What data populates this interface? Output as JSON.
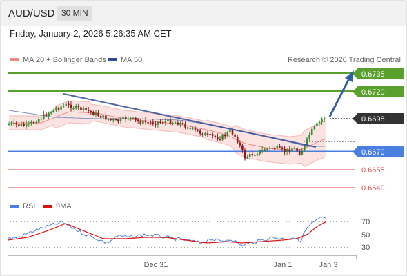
{
  "header": {
    "symbol": "AUD/USD",
    "timeframe": "30 MIN",
    "datetime": "Friday, January 2, 2026 5:26:35 AM CET"
  },
  "legend": {
    "bollinger_label": "MA 20 + Bollinger Bands",
    "ma50_label": "MA 50",
    "copyright": "Research © 2026 Trading Central"
  },
  "colors": {
    "bollinger": "#f08a86",
    "bollinger_fill": "#fbe3e2",
    "ma50": "#2e4d99",
    "green_level": "#5aa02c",
    "blue_level": "#4a7fe0",
    "red_level": "#e05050",
    "current_price": "#333333",
    "trend_arrow": "#2e5fa8",
    "rsi": "#4a7fe0",
    "rsi_ma": "#e01010"
  },
  "levels": [
    {
      "price": "0.6735",
      "style": "green-box"
    },
    {
      "price": "0.6720",
      "style": "green-box"
    },
    {
      "price": "0.6698",
      "style": "dark-box"
    },
    {
      "price": "0.6670",
      "style": "blue-box"
    },
    {
      "price": "0.6655",
      "style": "red-text"
    },
    {
      "price": "0.6640",
      "style": "red-text"
    }
  ],
  "rsi_panel": {
    "rsi_label": "RSI",
    "ma_label": "9MA",
    "ticks": [
      "70",
      "50",
      "30"
    ]
  },
  "x_axis": {
    "labels": [
      "Dec 31",
      "Jan 1",
      "Jan 3"
    ]
  }
}
